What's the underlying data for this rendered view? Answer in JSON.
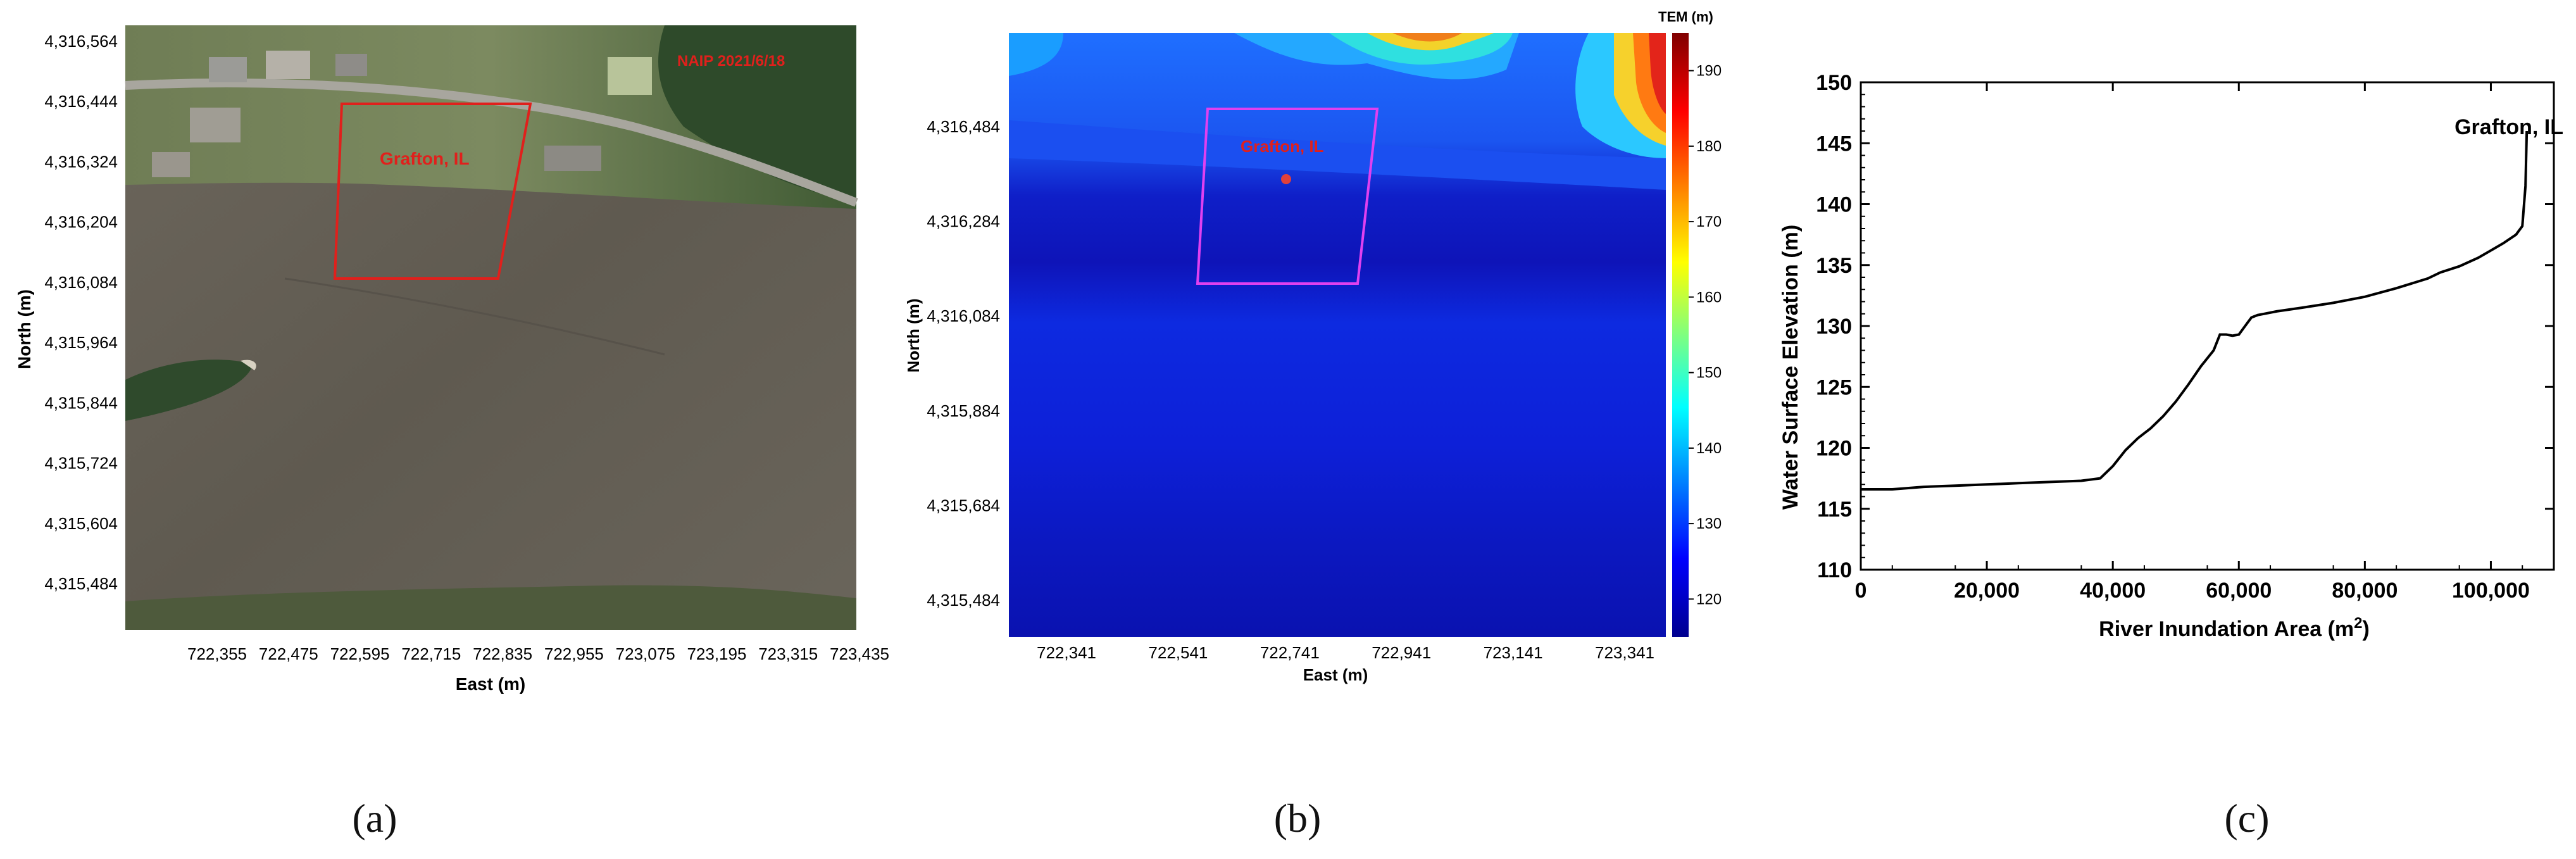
{
  "panels": {
    "a": {
      "label": "(a)",
      "image_tag": "NAIP 2021/6/18",
      "site_label": "Grafton, IL",
      "xlabel": "East (m)",
      "ylabel": "North (m)",
      "xticks": [
        "722,355",
        "722,475",
        "722,595",
        "722,715",
        "722,835",
        "722,955",
        "723,075",
        "723,195",
        "723,315",
        "723,435"
      ],
      "yticks": [
        "4,316,564",
        "4,316,444",
        "4,316,324",
        "4,316,204",
        "4,316,084",
        "4,315,964",
        "4,315,844",
        "4,315,724",
        "4,315,604",
        "4,315,484"
      ]
    },
    "b": {
      "label": "(b)",
      "site_label": "Grafton, IL",
      "xlabel": "East (m)",
      "ylabel": "North (m)",
      "xticks": [
        "722,341",
        "722,541",
        "722,741",
        "722,941",
        "723,141",
        "723,341"
      ],
      "yticks": [
        "4,316,484",
        "4,316,284",
        "4,316,084",
        "4,315,884",
        "4,315,684",
        "4,315,484"
      ],
      "colorbar_title": "TEM (m)",
      "colorbar_ticks": [
        "190",
        "180",
        "170",
        "160",
        "150",
        "140",
        "130",
        "120"
      ],
      "colorbar_range": [
        115,
        195
      ]
    },
    "c": {
      "label": "(c)"
    }
  },
  "chart_data": [
    {
      "type": "line",
      "title": "",
      "annotation": "Grafton, IL",
      "xlabel": "River Inundation Area (m²)",
      "xlabel_main": "River Inundation Area (m",
      "xlabel_sup": "2",
      "xlabel_close": ")",
      "ylabel": "Water Surface Elevation (m)",
      "xlim": [
        0,
        110000
      ],
      "ylim": [
        110,
        150
      ],
      "xticks": [
        0,
        20000,
        40000,
        60000,
        80000,
        100000
      ],
      "xtick_labels": [
        "0",
        "20,000",
        "40,000",
        "60,000",
        "80,000",
        "100,000"
      ],
      "yticks": [
        110,
        115,
        120,
        125,
        130,
        135,
        140,
        145,
        150
      ],
      "ytick_labels": [
        "110",
        "115",
        "120",
        "125",
        "130",
        "135",
        "140",
        "145",
        "150"
      ],
      "grid": false,
      "series": [
        {
          "x": [
            0,
            5000,
            10000,
            15000,
            20000,
            25000,
            30000,
            35000,
            38000,
            40000,
            42000,
            44000,
            46000,
            48000,
            50000,
            52000,
            54000,
            56000,
            57000,
            58000,
            59000,
            60000,
            61000,
            62000,
            63000,
            64000,
            66000,
            70000,
            75000,
            80000,
            85000,
            90000,
            92000,
            95000,
            98000,
            100000,
            102000,
            104000,
            105000,
            105500,
            105700
          ],
          "y": [
            116.6,
            116.6,
            116.8,
            116.9,
            117.0,
            117.1,
            117.2,
            117.3,
            117.5,
            118.5,
            119.8,
            120.8,
            121.6,
            122.6,
            123.8,
            125.2,
            126.7,
            128.0,
            129.3,
            129.3,
            129.2,
            129.3,
            130.0,
            130.7,
            130.9,
            131.0,
            131.2,
            131.5,
            131.9,
            132.4,
            133.1,
            133.9,
            134.4,
            134.9,
            135.6,
            136.2,
            136.8,
            137.5,
            138.2,
            141.5,
            146.0
          ]
        }
      ]
    }
  ]
}
